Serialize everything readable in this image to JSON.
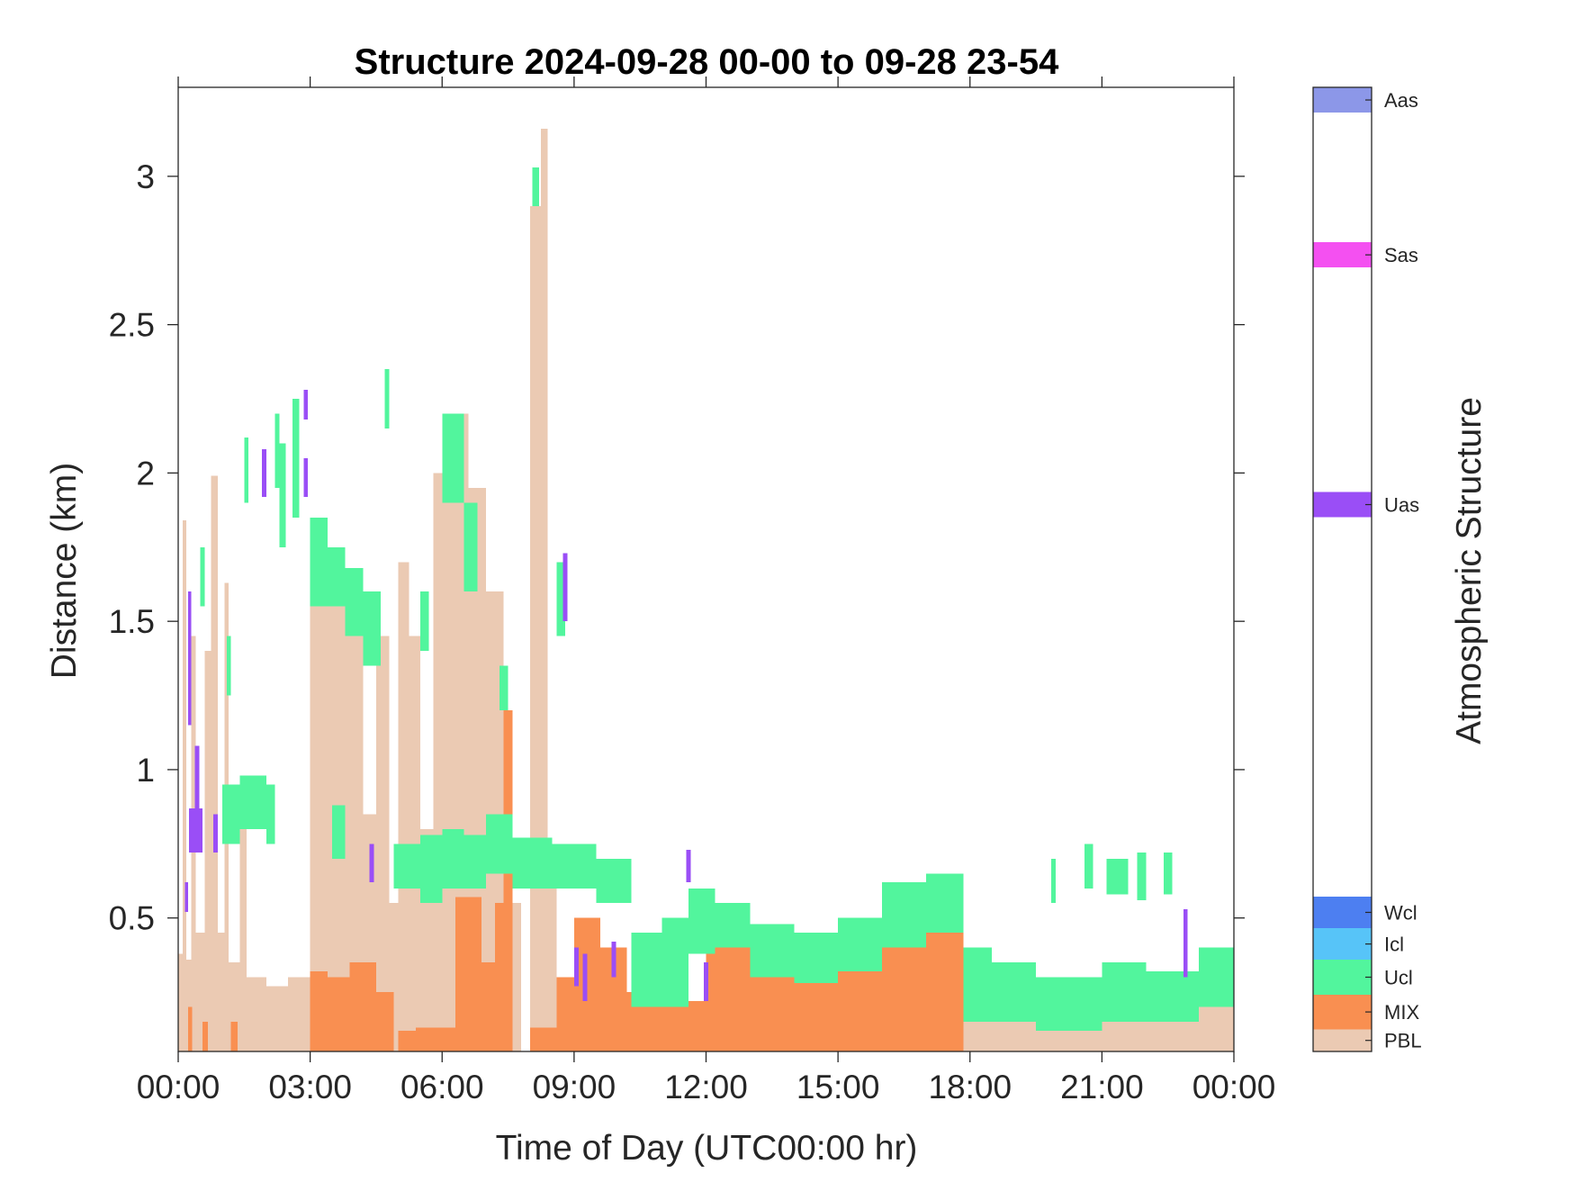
{
  "chart_data": {
    "type": "heatmap",
    "title": "Structure 2024-09-28 00-00 to 09-28 23-54",
    "xlabel": "Time of Day (UTC00:00 hr)",
    "ylabel": "Distance (km)",
    "xlim_hours": [
      0,
      24
    ],
    "ylim_km": [
      0.05,
      3.3
    ],
    "x_tick_labels": [
      "00:00",
      "03:00",
      "06:00",
      "09:00",
      "12:00",
      "15:00",
      "18:00",
      "21:00",
      "00:00"
    ],
    "y_ticks": [
      0.5,
      1,
      1.5,
      2,
      2.5,
      3
    ],
    "y_tick_labels": [
      "0.5",
      "1",
      "1.5",
      "2",
      "2.5",
      "3"
    ],
    "colorbar": {
      "label": "Atmospheric Structure",
      "classes": [
        {
          "name": "PBL",
          "color": "#EBCAB3"
        },
        {
          "name": "MIX",
          "color": "#F98F51"
        },
        {
          "name": "Ucl",
          "color": "#52F59D"
        },
        {
          "name": "Icl",
          "color": "#57C4F8"
        },
        {
          "name": "Wcl",
          "color": "#4D7FF1"
        },
        {
          "name": "Uas",
          "color": "#9A4EF6"
        },
        {
          "name": "Sas",
          "color": "#F450F1"
        },
        {
          "name": "Aas",
          "color": "#8C97E8"
        }
      ]
    },
    "segments": [
      [
        "PBL",
        0.0,
        0.1,
        0.05,
        0.38
      ],
      [
        "PBL",
        0.1,
        0.18,
        0.05,
        1.84
      ],
      [
        "PBL",
        0.18,
        0.3,
        0.05,
        0.36
      ],
      [
        "PBL",
        0.3,
        0.4,
        0.05,
        1.45
      ],
      [
        "PBL",
        0.4,
        0.6,
        0.05,
        0.45
      ],
      [
        "PBL",
        0.6,
        0.75,
        0.05,
        1.4
      ],
      [
        "PBL",
        0.75,
        0.9,
        0.05,
        1.99
      ],
      [
        "PBL",
        0.9,
        1.05,
        0.05,
        0.45
      ],
      [
        "PBL",
        1.05,
        1.15,
        0.05,
        1.63
      ],
      [
        "PBL",
        1.15,
        1.4,
        0.05,
        0.35
      ],
      [
        "PBL",
        1.4,
        1.55,
        0.05,
        0.9
      ],
      [
        "PBL",
        1.55,
        2.0,
        0.05,
        0.3
      ],
      [
        "PBL",
        2.0,
        2.5,
        0.05,
        0.27
      ],
      [
        "PBL",
        2.5,
        3.0,
        0.05,
        0.3
      ],
      [
        "PBL",
        3.0,
        3.4,
        0.05,
        1.7
      ],
      [
        "PBL",
        3.4,
        3.8,
        0.05,
        1.62
      ],
      [
        "PBL",
        3.8,
        4.2,
        0.05,
        1.55
      ],
      [
        "PBL",
        4.2,
        4.5,
        0.05,
        0.85
      ],
      [
        "PBL",
        4.5,
        4.8,
        0.05,
        1.45
      ],
      [
        "PBL",
        4.8,
        5.0,
        0.05,
        0.55
      ],
      [
        "PBL",
        5.0,
        5.25,
        0.05,
        1.7
      ],
      [
        "PBL",
        5.25,
        5.5,
        0.05,
        1.45
      ],
      [
        "PBL",
        5.5,
        5.8,
        0.05,
        0.8
      ],
      [
        "PBL",
        5.8,
        6.2,
        0.05,
        2.0
      ],
      [
        "PBL",
        6.2,
        6.6,
        0.05,
        2.2
      ],
      [
        "PBL",
        6.6,
        7.0,
        0.05,
        1.95
      ],
      [
        "PBL",
        7.0,
        7.4,
        0.05,
        1.6
      ],
      [
        "PBL",
        7.6,
        7.8,
        0.05,
        0.55
      ],
      [
        "PBL",
        8.0,
        8.25,
        0.05,
        2.9
      ],
      [
        "PBL",
        8.25,
        8.4,
        0.05,
        3.16
      ],
      [
        "PBL",
        8.4,
        8.6,
        0.05,
        0.7
      ],
      [
        "PBL",
        17.85,
        18.2,
        0.05,
        0.2
      ],
      [
        "PBL",
        18.2,
        19.5,
        0.05,
        0.17
      ],
      [
        "PBL",
        19.5,
        21.0,
        0.05,
        0.13
      ],
      [
        "PBL",
        21.0,
        22.0,
        0.05,
        0.17
      ],
      [
        "PBL",
        22.0,
        22.5,
        0.05,
        0.15
      ],
      [
        "PBL",
        22.5,
        23.2,
        0.05,
        0.16
      ],
      [
        "PBL",
        23.2,
        24.0,
        0.05,
        0.21
      ],
      [
        "MIX",
        0.22,
        0.32,
        0.05,
        0.2
      ],
      [
        "MIX",
        0.55,
        0.68,
        0.05,
        0.15
      ],
      [
        "MIX",
        1.2,
        1.35,
        0.05,
        0.15
      ],
      [
        "MIX",
        3.0,
        3.4,
        0.05,
        0.32
      ],
      [
        "MIX",
        3.4,
        3.9,
        0.05,
        0.3
      ],
      [
        "MIX",
        3.9,
        4.5,
        0.05,
        0.35
      ],
      [
        "MIX",
        4.5,
        4.9,
        0.05,
        0.25
      ],
      [
        "MIX",
        5.0,
        5.4,
        0.05,
        0.12
      ],
      [
        "MIX",
        5.4,
        6.3,
        0.05,
        0.13
      ],
      [
        "MIX",
        6.3,
        6.9,
        0.05,
        0.57
      ],
      [
        "MIX",
        6.9,
        7.2,
        0.05,
        0.35
      ],
      [
        "MIX",
        7.2,
        7.4,
        0.05,
        0.55
      ],
      [
        "MIX",
        7.4,
        7.6,
        0.05,
        1.2
      ],
      [
        "MIX",
        8.0,
        8.6,
        0.05,
        0.13
      ],
      [
        "MIX",
        8.6,
        9.0,
        0.05,
        0.3
      ],
      [
        "MIX",
        9.0,
        9.6,
        0.05,
        0.5
      ],
      [
        "MIX",
        9.6,
        10.2,
        0.05,
        0.4
      ],
      [
        "MIX",
        10.2,
        11.0,
        0.05,
        0.25
      ],
      [
        "MIX",
        11.0,
        12.0,
        0.05,
        0.22
      ],
      [
        "MIX",
        12.0,
        13.0,
        0.05,
        0.4
      ],
      [
        "MIX",
        13.0,
        14.0,
        0.05,
        0.32
      ],
      [
        "MIX",
        14.0,
        15.0,
        0.05,
        0.28
      ],
      [
        "MIX",
        15.0,
        16.0,
        0.05,
        0.35
      ],
      [
        "MIX",
        16.0,
        17.0,
        0.05,
        0.45
      ],
      [
        "MIX",
        17.0,
        17.85,
        0.05,
        0.48
      ],
      [
        "Ucl",
        0.5,
        0.6,
        1.55,
        1.75
      ],
      [
        "Ucl",
        1.1,
        1.2,
        1.25,
        1.45
      ],
      [
        "Ucl",
        1.0,
        1.4,
        0.75,
        0.95
      ],
      [
        "Ucl",
        1.4,
        2.0,
        0.8,
        0.98
      ],
      [
        "Ucl",
        2.0,
        2.2,
        0.75,
        0.95
      ],
      [
        "Ucl",
        1.5,
        1.6,
        1.9,
        2.12
      ],
      [
        "Ucl",
        2.2,
        2.3,
        1.95,
        2.2
      ],
      [
        "Ucl",
        2.3,
        2.45,
        1.75,
        2.1
      ],
      [
        "Ucl",
        2.6,
        2.75,
        1.85,
        2.25
      ],
      [
        "Ucl",
        3.0,
        3.4,
        1.55,
        1.85
      ],
      [
        "Ucl",
        3.4,
        3.8,
        1.55,
        1.75
      ],
      [
        "Ucl",
        3.8,
        4.2,
        1.45,
        1.68
      ],
      [
        "Ucl",
        4.2,
        4.6,
        1.35,
        1.6
      ],
      [
        "Ucl",
        4.7,
        4.8,
        2.15,
        2.35
      ],
      [
        "Ucl",
        3.5,
        3.8,
        0.7,
        0.88
      ],
      [
        "Ucl",
        4.9,
        5.5,
        0.6,
        0.75
      ],
      [
        "Ucl",
        5.5,
        6.0,
        0.55,
        0.78
      ],
      [
        "Ucl",
        6.0,
        6.5,
        0.6,
        0.8
      ],
      [
        "Ucl",
        6.5,
        7.0,
        0.6,
        0.78
      ],
      [
        "Ucl",
        7.0,
        7.6,
        0.65,
        0.85
      ],
      [
        "Ucl",
        5.5,
        5.7,
        1.4,
        1.6
      ],
      [
        "Ucl",
        6.0,
        6.5,
        1.9,
        2.2
      ],
      [
        "Ucl",
        6.5,
        6.8,
        1.6,
        1.9
      ],
      [
        "Ucl",
        7.3,
        7.5,
        1.2,
        1.35
      ],
      [
        "Ucl",
        8.05,
        8.2,
        2.9,
        3.03
      ],
      [
        "Ucl",
        8.6,
        8.8,
        1.45,
        1.7
      ],
      [
        "Ucl",
        7.6,
        8.5,
        0.6,
        0.77
      ],
      [
        "Ucl",
        8.5,
        9.5,
        0.6,
        0.75
      ],
      [
        "Ucl",
        9.5,
        10.3,
        0.55,
        0.7
      ],
      [
        "Ucl",
        10.3,
        11.0,
        0.2,
        0.45
      ],
      [
        "Ucl",
        11.0,
        11.6,
        0.2,
        0.5
      ],
      [
        "Ucl",
        11.6,
        12.2,
        0.38,
        0.6
      ],
      [
        "Ucl",
        12.2,
        13.0,
        0.4,
        0.55
      ],
      [
        "Ucl",
        13.0,
        14.0,
        0.3,
        0.48
      ],
      [
        "Ucl",
        14.0,
        15.0,
        0.28,
        0.45
      ],
      [
        "Ucl",
        15.0,
        16.0,
        0.32,
        0.5
      ],
      [
        "Ucl",
        16.0,
        17.0,
        0.4,
        0.62
      ],
      [
        "Ucl",
        17.0,
        17.85,
        0.45,
        0.65
      ],
      [
        "Ucl",
        17.85,
        18.5,
        0.15,
        0.4
      ],
      [
        "Ucl",
        18.5,
        19.5,
        0.15,
        0.35
      ],
      [
        "Ucl",
        19.5,
        21.0,
        0.12,
        0.3
      ],
      [
        "Ucl",
        21.0,
        22.0,
        0.15,
        0.35
      ],
      [
        "Ucl",
        22.0,
        23.2,
        0.15,
        0.32
      ],
      [
        "Ucl",
        23.2,
        24.0,
        0.2,
        0.4
      ],
      [
        "Ucl",
        19.85,
        19.95,
        0.55,
        0.7
      ],
      [
        "Ucl",
        20.6,
        20.8,
        0.6,
        0.75
      ],
      [
        "Ucl",
        21.1,
        21.6,
        0.58,
        0.7
      ],
      [
        "Ucl",
        21.8,
        22.0,
        0.56,
        0.72
      ],
      [
        "Ucl",
        22.4,
        22.6,
        0.58,
        0.72
      ],
      [
        "Uas",
        0.15,
        0.22,
        0.52,
        0.62
      ],
      [
        "Uas",
        0.22,
        0.3,
        1.15,
        1.6
      ],
      [
        "Uas",
        0.25,
        0.55,
        0.72,
        0.87
      ],
      [
        "Uas",
        0.38,
        0.48,
        0.87,
        1.08
      ],
      [
        "Uas",
        0.8,
        0.9,
        0.72,
        0.85
      ],
      [
        "Uas",
        1.9,
        2.0,
        1.92,
        2.08
      ],
      [
        "Uas",
        2.85,
        2.95,
        1.92,
        2.05
      ],
      [
        "Uas",
        2.85,
        2.95,
        2.18,
        2.28
      ],
      [
        "Uas",
        4.35,
        4.45,
        0.62,
        0.75
      ],
      [
        "Uas",
        8.75,
        8.85,
        1.5,
        1.73
      ],
      [
        "Uas",
        9.0,
        9.1,
        0.27,
        0.4
      ],
      [
        "Uas",
        9.2,
        9.3,
        0.22,
        0.38
      ],
      [
        "Uas",
        9.85,
        9.95,
        0.3,
        0.42
      ],
      [
        "Uas",
        11.55,
        11.65,
        0.62,
        0.73
      ],
      [
        "Uas",
        11.95,
        12.05,
        0.22,
        0.35
      ],
      [
        "Uas",
        22.85,
        22.95,
        0.3,
        0.53
      ]
    ]
  }
}
